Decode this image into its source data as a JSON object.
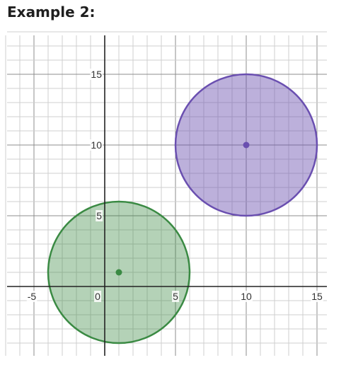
{
  "title": "Example 2:",
  "chart_data": {
    "type": "circles",
    "xlim": [
      -7,
      15.7
    ],
    "ylim": [
      -4.9,
      18.3
    ],
    "grid": true,
    "x_ticks": [
      -5,
      0,
      5,
      10,
      15
    ],
    "y_ticks": [
      5,
      10,
      15
    ],
    "x_tick_labels": [
      "-5",
      "0",
      "5",
      "10",
      "15"
    ],
    "y_tick_labels": [
      "5",
      "10",
      "15"
    ],
    "circles": [
      {
        "center": [
          1,
          1
        ],
        "radius": 5,
        "stroke": "#3a8a43",
        "fill": "#3a8a43",
        "fill_opacity": 0.38
      },
      {
        "center": [
          10,
          10
        ],
        "radius": 5,
        "stroke": "#6a4fb0",
        "fill": "#6a4fb0",
        "fill_opacity": 0.45
      }
    ]
  }
}
